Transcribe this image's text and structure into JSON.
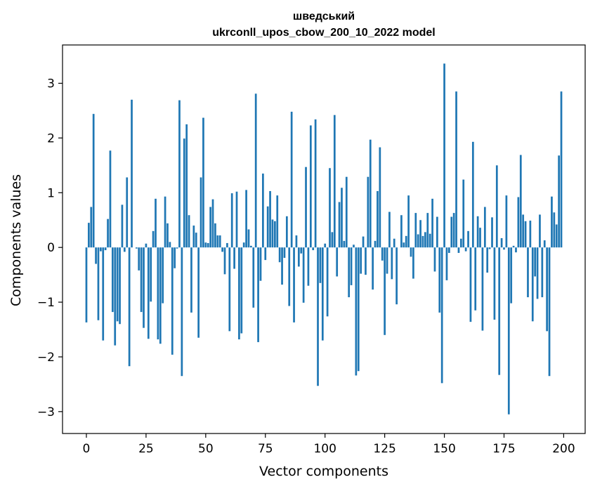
{
  "chart_data": {
    "type": "bar",
    "title_line1": "шведський",
    "title_line2": "ukrconll_upos_cbow_200_10_2022 model",
    "xlabel": "Vector components",
    "ylabel": "Components values",
    "xlim": [
      -10,
      209
    ],
    "ylim": [
      -3.4,
      3.7
    ],
    "xticks": [
      0,
      25,
      50,
      75,
      100,
      125,
      150,
      175,
      200
    ],
    "xtick_labels": [
      "0",
      "25",
      "50",
      "75",
      "100",
      "125",
      "150",
      "175",
      "200"
    ],
    "yticks": [
      -3,
      -2,
      -1,
      0,
      1,
      2,
      3
    ],
    "ytick_labels": [
      "−3",
      "−2",
      "−1",
      "0",
      "1",
      "2",
      "3"
    ],
    "bar_color": "#1f77b4",
    "x": [
      0,
      1,
      2,
      3,
      4,
      5,
      6,
      7,
      8,
      9,
      10,
      11,
      12,
      13,
      14,
      15,
      16,
      17,
      18,
      19,
      20,
      21,
      22,
      23,
      24,
      25,
      26,
      27,
      28,
      29,
      30,
      31,
      32,
      33,
      34,
      35,
      36,
      37,
      38,
      39,
      40,
      41,
      42,
      43,
      44,
      45,
      46,
      47,
      48,
      49,
      50,
      51,
      52,
      53,
      54,
      55,
      56,
      57,
      58,
      59,
      60,
      61,
      62,
      63,
      64,
      65,
      66,
      67,
      68,
      69,
      70,
      71,
      72,
      73,
      74,
      75,
      76,
      77,
      78,
      79,
      80,
      81,
      82,
      83,
      84,
      85,
      86,
      87,
      88,
      89,
      90,
      91,
      92,
      93,
      94,
      95,
      96,
      97,
      98,
      99,
      100,
      101,
      102,
      103,
      104,
      105,
      106,
      107,
      108,
      109,
      110,
      111,
      112,
      113,
      114,
      115,
      116,
      117,
      118,
      119,
      120,
      121,
      122,
      123,
      124,
      125,
      126,
      127,
      128,
      129,
      130,
      131,
      132,
      133,
      134,
      135,
      136,
      137,
      138,
      139,
      140,
      141,
      142,
      143,
      144,
      145,
      146,
      147,
      148,
      149,
      150,
      151,
      152,
      153,
      154,
      155,
      156,
      157,
      158,
      159,
      160,
      161,
      162,
      163,
      164,
      165,
      166,
      167,
      168,
      169,
      170,
      171,
      172,
      173,
      174,
      175,
      176,
      177,
      178,
      179,
      180,
      181,
      182,
      183,
      184,
      185,
      186,
      187,
      188,
      189,
      190,
      191,
      192,
      193,
      194,
      195,
      196,
      197,
      198,
      199
    ],
    "values": [
      -1.37,
      0.45,
      0.74,
      2.44,
      -0.3,
      -1.33,
      -0.07,
      -1.7,
      -0.05,
      0.52,
      1.77,
      -1.18,
      -1.79,
      -1.35,
      -1.4,
      0.78,
      -0.08,
      1.28,
      -2.17,
      2.7,
      0.0,
      -0.02,
      -0.42,
      -1.18,
      -1.47,
      0.07,
      -1.67,
      -0.99,
      0.3,
      0.89,
      -1.68,
      -1.76,
      -1.02,
      0.93,
      0.44,
      0.1,
      -1.96,
      -0.38,
      -0.02,
      2.69,
      -2.35,
      1.99,
      2.25,
      0.59,
      -1.19,
      0.4,
      0.27,
      -1.65,
      1.28,
      2.37,
      0.09,
      0.08,
      0.74,
      0.88,
      0.44,
      0.22,
      0.22,
      -0.08,
      -0.49,
      0.08,
      -1.53,
      0.99,
      -0.39,
      1.02,
      -1.68,
      -1.57,
      0.09,
      1.05,
      0.33,
      0.03,
      -1.1,
      2.81,
      -1.73,
      -0.61,
      1.35,
      -0.23,
      0.75,
      1.03,
      0.51,
      0.48,
      0.95,
      -0.27,
      -0.68,
      -0.19,
      0.57,
      -1.07,
      2.48,
      -1.37,
      0.22,
      -0.35,
      -0.11,
      -1.01,
      1.47,
      -0.7,
      2.23,
      -0.05,
      2.34,
      -2.53,
      -0.65,
      -1.7,
      0.07,
      -1.26,
      1.45,
      0.28,
      2.42,
      -0.53,
      0.83,
      1.09,
      0.12,
      1.29,
      -0.91,
      -0.69,
      0.05,
      -2.34,
      -2.26,
      -0.48,
      0.2,
      -0.5,
      1.29,
      1.97,
      -0.77,
      0.12,
      1.03,
      1.83,
      -0.24,
      -1.6,
      -0.48,
      0.65,
      -0.58,
      0.16,
      -1.04,
      0.0,
      0.59,
      0.09,
      0.21,
      0.95,
      -0.17,
      -0.57,
      0.63,
      0.24,
      0.5,
      0.21,
      0.28,
      0.63,
      0.25,
      0.89,
      -0.44,
      0.56,
      -1.19,
      -2.48,
      3.36,
      -0.6,
      -0.1,
      0.56,
      0.63,
      2.85,
      -0.1,
      0.16,
      1.24,
      -0.07,
      0.3,
      -1.36,
      1.93,
      -1.15,
      0.57,
      0.36,
      -1.52,
      0.74,
      -0.46,
      -0.03,
      0.55,
      -1.32,
      1.5,
      -2.33,
      0.17,
      -0.04,
      0.95,
      -3.05,
      -1.02,
      0.03,
      -0.09,
      0.92,
      1.69,
      0.6,
      0.48,
      -0.91,
      0.49,
      -1.35,
      -0.53,
      -0.94,
      0.6,
      -0.91,
      0.13,
      -1.53,
      -2.35,
      0.93,
      0.64,
      0.42,
      1.68,
      2.85
    ]
  }
}
